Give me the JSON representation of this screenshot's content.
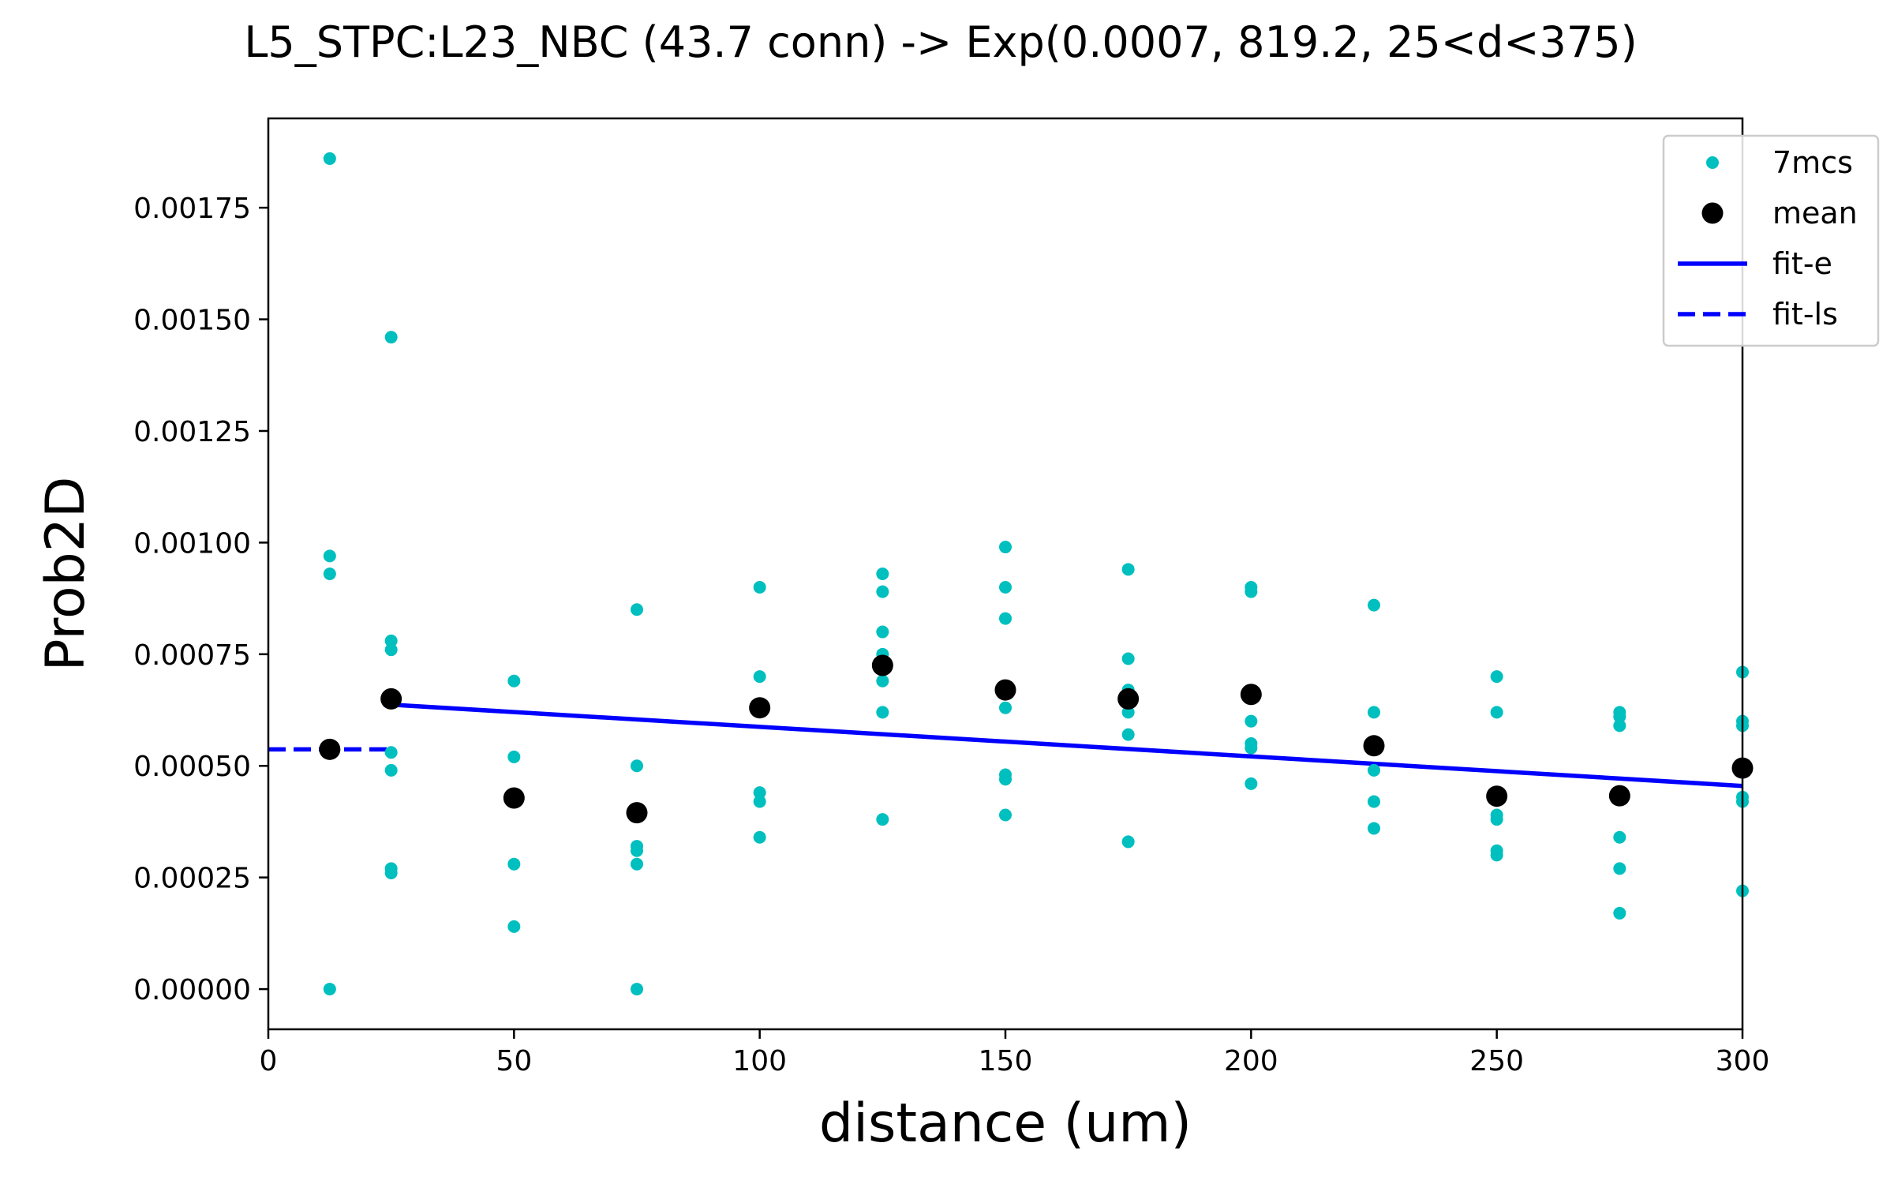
{
  "chart_data": {
    "type": "scatter",
    "title": "L5_STPC:L23_NBC (43.7 conn) -> Exp(0.0007, 819.2, 25<d<375)",
    "xlabel": "distance (um)",
    "ylabel": "Prob2D",
    "xlim": [
      0,
      300
    ],
    "ylim": [
      -9e-05,
      0.00195
    ],
    "xticks": [
      0,
      50,
      100,
      150,
      200,
      250,
      300
    ],
    "xtick_labels": [
      "0",
      "50",
      "100",
      "150",
      "200",
      "250",
      "300"
    ],
    "yticks": [
      0,
      0.00025,
      0.0005,
      0.00075,
      0.001,
      0.00125,
      0.0015,
      0.00175
    ],
    "ytick_labels": [
      "0.00000",
      "0.00025",
      "0.00050",
      "0.00075",
      "0.00100",
      "0.00125",
      "0.00150",
      "0.00175"
    ],
    "grid": false,
    "legend_position": "top-right",
    "legend": [
      "7mcs",
      "mean",
      "fit-e",
      "fit-ls"
    ],
    "colors": {
      "samples": "#00bfbf",
      "mean": "#000000",
      "fit": "#0000ff"
    },
    "series": [
      {
        "name": "7mcs",
        "kind": "points",
        "points": [
          [
            12.5,
            0.00186
          ],
          [
            12.5,
            0.00097
          ],
          [
            12.5,
            0.00093
          ],
          [
            12.5,
            0.00054
          ],
          [
            12.5,
            0.0
          ],
          [
            25,
            0.00146
          ],
          [
            25,
            0.00078
          ],
          [
            25,
            0.00076
          ],
          [
            25,
            0.00053
          ],
          [
            25,
            0.00049
          ],
          [
            25,
            0.00027
          ],
          [
            25,
            0.00026
          ],
          [
            50,
            0.00069
          ],
          [
            50,
            0.00052
          ],
          [
            50,
            0.00028
          ],
          [
            50,
            0.00014
          ],
          [
            75,
            0.00085
          ],
          [
            75,
            0.0005
          ],
          [
            75,
            0.00032
          ],
          [
            75,
            0.00031
          ],
          [
            75,
            0.00028
          ],
          [
            75,
            0.0
          ],
          [
            100,
            0.0009
          ],
          [
            100,
            0.0007
          ],
          [
            100,
            0.00044
          ],
          [
            100,
            0.00042
          ],
          [
            100,
            0.00034
          ],
          [
            125,
            0.00093
          ],
          [
            125,
            0.00089
          ],
          [
            125,
            0.0008
          ],
          [
            125,
            0.00075
          ],
          [
            125,
            0.00069
          ],
          [
            125,
            0.00062
          ],
          [
            125,
            0.00038
          ],
          [
            150,
            0.00099
          ],
          [
            150,
            0.0009
          ],
          [
            150,
            0.00083
          ],
          [
            150,
            0.00063
          ],
          [
            150,
            0.00048
          ],
          [
            150,
            0.00047
          ],
          [
            150,
            0.00039
          ],
          [
            175,
            0.00094
          ],
          [
            175,
            0.00074
          ],
          [
            175,
            0.00067
          ],
          [
            175,
            0.00062
          ],
          [
            175,
            0.00057
          ],
          [
            175,
            0.00033
          ],
          [
            200,
            0.0009
          ],
          [
            200,
            0.00089
          ],
          [
            200,
            0.0006
          ],
          [
            200,
            0.00055
          ],
          [
            200,
            0.00054
          ],
          [
            200,
            0.00046
          ],
          [
            225,
            0.00086
          ],
          [
            225,
            0.00062
          ],
          [
            225,
            0.00049
          ],
          [
            225,
            0.00042
          ],
          [
            225,
            0.00036
          ],
          [
            250,
            0.0007
          ],
          [
            250,
            0.00062
          ],
          [
            250,
            0.00039
          ],
          [
            250,
            0.00038
          ],
          [
            250,
            0.00031
          ],
          [
            250,
            0.0003
          ],
          [
            275,
            0.00062
          ],
          [
            275,
            0.00061
          ],
          [
            275,
            0.00059
          ],
          [
            275,
            0.00034
          ],
          [
            275,
            0.00027
          ],
          [
            275,
            0.00017
          ],
          [
            300,
            0.00071
          ],
          [
            300,
            0.0006
          ],
          [
            300,
            0.00059
          ],
          [
            300,
            0.00043
          ],
          [
            300,
            0.00042
          ],
          [
            300,
            0.00022
          ]
        ]
      },
      {
        "name": "mean",
        "kind": "points",
        "points": [
          [
            12.5,
            0.000537
          ],
          [
            25,
            0.00065
          ],
          [
            50,
            0.000428
          ],
          [
            75,
            0.000395
          ],
          [
            100,
            0.00063
          ],
          [
            125,
            0.000725
          ],
          [
            150,
            0.00067
          ],
          [
            175,
            0.00065
          ],
          [
            200,
            0.00066
          ],
          [
            225,
            0.000545
          ],
          [
            250,
            0.000432
          ],
          [
            275,
            0.000433
          ],
          [
            300,
            0.000495
          ]
        ]
      },
      {
        "name": "fit-e",
        "kind": "line",
        "points": [
          [
            25,
            0.000637
          ],
          [
            300,
            0.000455
          ]
        ]
      },
      {
        "name": "fit-ls",
        "kind": "dashed-line",
        "points": [
          [
            0,
            0.000537
          ],
          [
            25,
            0.000537
          ]
        ]
      }
    ]
  }
}
